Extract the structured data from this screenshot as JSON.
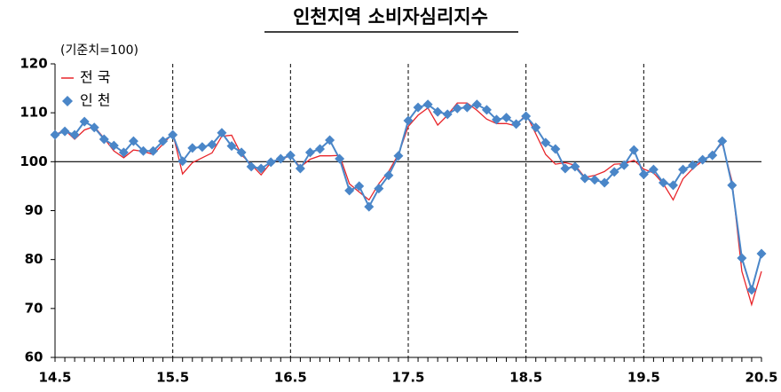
{
  "chart_data": {
    "type": "line",
    "title": "인천지역 소비자심리지수",
    "note": "(기준치=100)",
    "categories": [
      "14.5",
      null,
      null,
      null,
      null,
      null,
      null,
      null,
      null,
      null,
      null,
      null,
      "15.5",
      null,
      null,
      null,
      null,
      null,
      null,
      null,
      null,
      null,
      null,
      null,
      "16.5",
      null,
      null,
      null,
      null,
      null,
      null,
      null,
      null,
      null,
      null,
      null,
      "17.5",
      null,
      null,
      null,
      null,
      null,
      null,
      null,
      null,
      null,
      null,
      null,
      "18.5",
      null,
      null,
      null,
      null,
      null,
      null,
      null,
      null,
      null,
      null,
      null,
      "19.5",
      null,
      null,
      null,
      null,
      null,
      null,
      null,
      null,
      null,
      null,
      null,
      "20.5"
    ],
    "series": [
      {
        "name": "전 국",
        "color": "#e8262b",
        "marker": "none",
        "values": [
          105.5,
          106.5,
          104.6,
          106.5,
          107.2,
          104.8,
          102.2,
          100.8,
          102.4,
          102.1,
          101.5,
          103.6,
          105.8,
          97.5,
          99.8,
          100.8,
          101.8,
          105.2,
          105.4,
          101.4,
          99.4,
          97.3,
          99.8,
          100.5,
          101.2,
          98.9,
          100.5,
          101.2,
          101.2,
          101.3,
          95.5,
          93.8,
          92.2,
          95.5,
          98,
          101.5,
          107.2,
          109.5,
          111,
          107.5,
          109.5,
          112,
          112,
          110.5,
          108.7,
          107.8,
          107.8,
          107.3,
          109.8,
          105.7,
          101.5,
          99.5,
          99.8,
          99.3,
          96.8,
          97.2,
          98,
          99.5,
          99.6,
          100.3,
          98.5,
          97.7,
          95.5,
          92.2,
          96.5,
          98.6,
          100.2,
          101.6,
          103.8,
          96,
          77.6,
          70.8,
          77.6
        ]
      },
      {
        "name": "인 천",
        "color": "#4a86c8",
        "marker": "diamond",
        "values": [
          105.5,
          106.2,
          105.5,
          108.2,
          107,
          104.6,
          103.3,
          101.9,
          104.2,
          102.2,
          102.2,
          104.2,
          105.5,
          100.1,
          102.8,
          103,
          103.5,
          105.9,
          103.2,
          101.9,
          99,
          98.6,
          99.9,
          100.6,
          101.3,
          98.6,
          101.9,
          102.6,
          104.4,
          100.6,
          94.1,
          95,
          90.8,
          94.5,
          97.2,
          101.2,
          108.4,
          111.1,
          111.7,
          110.2,
          109.7,
          110.9,
          111.1,
          111.7,
          110.6,
          108.6,
          109,
          107.7,
          109.3,
          107,
          103.9,
          102.6,
          98.6,
          99,
          96.6,
          96.3,
          95.7,
          97.9,
          99.3,
          102.4,
          97.4,
          98.4,
          95.7,
          95.2,
          98.4,
          99.3,
          100.4,
          101.3,
          104.2,
          95.2,
          80.3,
          73.8,
          81.2
        ]
      }
    ],
    "reference_line": 100,
    "ylim": [
      60,
      120
    ],
    "yticks": [
      60,
      70,
      80,
      90,
      100,
      110,
      120
    ],
    "legend": "upper left"
  }
}
